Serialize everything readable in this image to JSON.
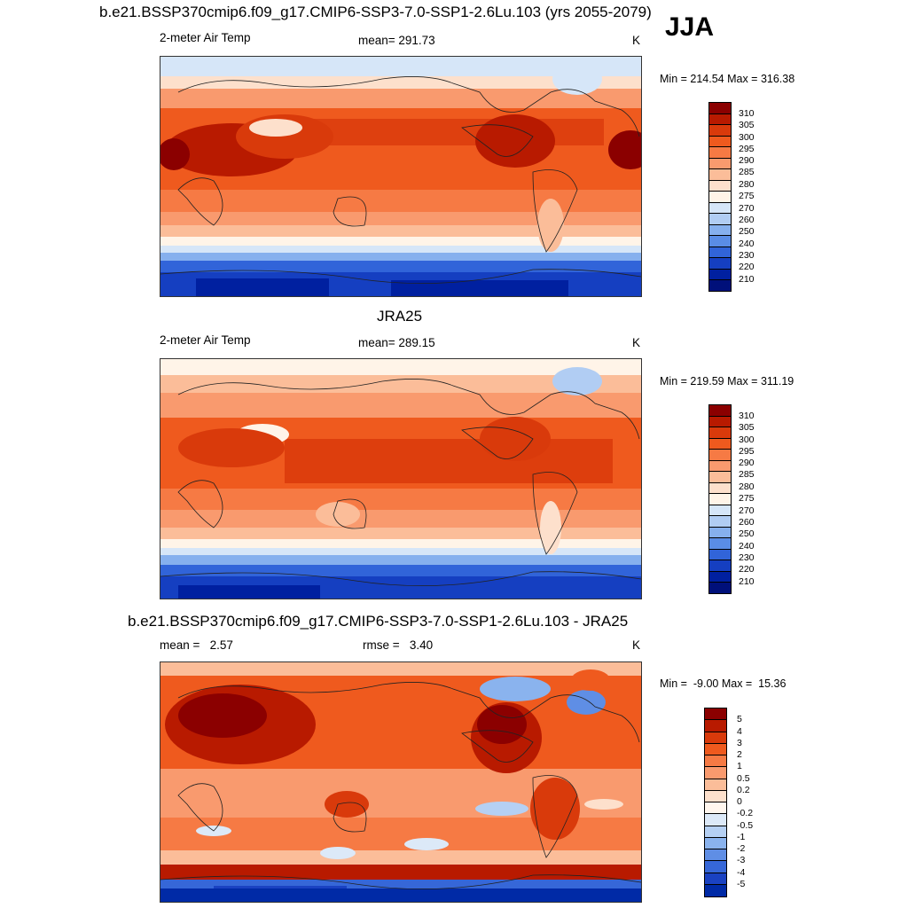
{
  "header": {
    "title": "b.e21.BSSP370cmip6.f09_g17.CMIP6-SSP3-7.0-SSP1-2.6Lu.103 (yrs 2055-2079)",
    "season": "JJA"
  },
  "panel1": {
    "variable": "2-meter Air Temp",
    "mean": "mean= 291.73",
    "units": "K",
    "minmax": "Min = 214.54 Max = 316.38",
    "colorbar_labels": [
      "310",
      "305",
      "300",
      "295",
      "290",
      "285",
      "280",
      "275",
      "270",
      "260",
      "250",
      "240",
      "230",
      "220",
      "210"
    ]
  },
  "panel2": {
    "title": "JRA25",
    "variable": "2-meter Air Temp",
    "mean": "mean= 289.15",
    "units": "K",
    "minmax": "Min = 219.59 Max = 311.19",
    "colorbar_labels": [
      "310",
      "305",
      "300",
      "295",
      "290",
      "285",
      "280",
      "275",
      "270",
      "260",
      "250",
      "240",
      "230",
      "220",
      "210"
    ]
  },
  "panel3": {
    "title": "b.e21.BSSP370cmip6.f09_g17.CMIP6-SSP3-7.0-SSP1-2.6Lu.103 - JRA25",
    "mean": "mean =   2.57",
    "rmse": "rmse =   3.40",
    "units": "K",
    "minmax": "Min =  -9.00 Max =  15.36",
    "colorbar_labels": [
      "5",
      "4",
      "3",
      "2",
      "1",
      "0.5",
      "0.2",
      "0",
      "-0.2",
      "-0.5",
      "-1",
      "-2",
      "-3",
      "-4",
      "-5"
    ]
  },
  "colors": {
    "temp_scale": [
      "#8b0000",
      "#b81a00",
      "#d93a0b",
      "#ef5a1e",
      "#f67a44",
      "#f99a6e",
      "#fbbd99",
      "#fde0cc",
      "#fff4e8",
      "#d6e6f8",
      "#b1cdf3",
      "#86b0ee",
      "#5a8de6",
      "#3164d9",
      "#153fc1",
      "#0020a0",
      "#00107a"
    ],
    "diff_scale": [
      "#8b0000",
      "#b81a00",
      "#d93a0b",
      "#ef5a1e",
      "#f67a44",
      "#f99a6e",
      "#fbbd99",
      "#fde0cc",
      "#fff6ee",
      "#dce9f8",
      "#b5d0f3",
      "#8ab3ee",
      "#5f8ee5",
      "#3667d8",
      "#1a42c2",
      "#002aa6"
    ]
  }
}
